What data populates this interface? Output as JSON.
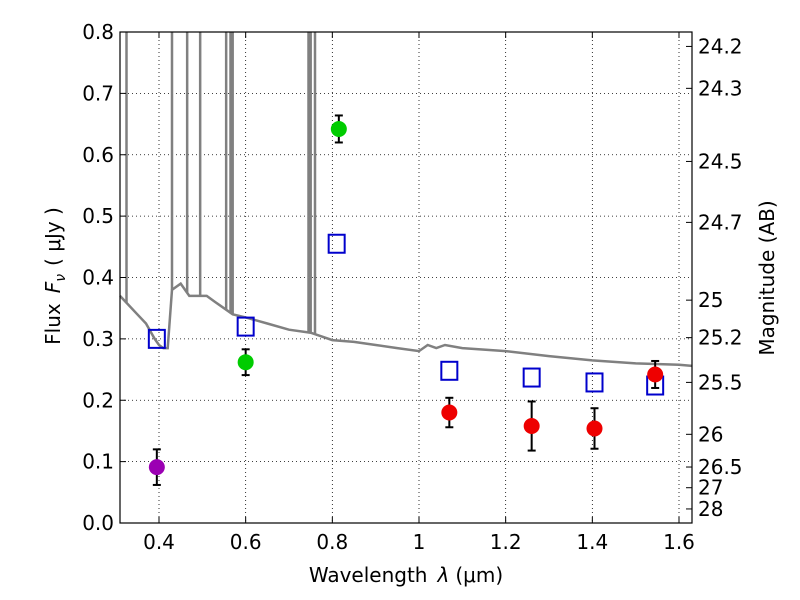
{
  "chart_data": {
    "type": "scatter",
    "title": "",
    "xlabel_text": "Wavelength",
    "xlabel_symbol": "λ",
    "xlabel_unit": "(μm)",
    "ylabel_text": "Flux",
    "ylabel_symbol": "F",
    "ylabel_subscript": "ν",
    "ylabel_unit": "( μJy )",
    "y2label": "Magnitude (AB)",
    "xlim": [
      0.31,
      1.63
    ],
    "ylim": [
      0.0,
      0.8
    ],
    "grid": "dotted",
    "xticks": [
      0.4,
      0.6,
      0.8,
      1.0,
      1.2,
      1.4,
      1.6
    ],
    "xtick_labels": [
      "0.4",
      "0.6",
      "0.8",
      "1",
      "1.2",
      "1.4",
      "1.6"
    ],
    "yticks": [
      0.0,
      0.1,
      0.2,
      0.3,
      0.4,
      0.5,
      0.6,
      0.7,
      0.8
    ],
    "ytick_labels": [
      "0.0",
      "0.1",
      "0.2",
      "0.3",
      "0.4",
      "0.5",
      "0.6",
      "0.7",
      "0.8"
    ],
    "mag_ticks": [
      {
        "label": "24.2",
        "flux": 0.7765
      },
      {
        "label": "24.3",
        "flux": 0.7082
      },
      {
        "label": "24.5",
        "flux": 0.5891
      },
      {
        "label": "24.7",
        "flux": 0.4898
      },
      {
        "label": "25",
        "flux": 0.3631
      },
      {
        "label": "25.2",
        "flux": 0.302
      },
      {
        "label": "25.5",
        "flux": 0.2291
      },
      {
        "label": "26",
        "flux": 0.1445
      },
      {
        "label": "26.5",
        "flux": 0.0912
      },
      {
        "label": "27",
        "flux": 0.0575
      },
      {
        "label": "28",
        "flux": 0.0229
      }
    ],
    "series": [
      {
        "name": "model SED",
        "type": "line",
        "color": "#808080",
        "x": [
          0.31,
          0.33,
          0.35,
          0.37,
          0.39,
          0.4,
          0.41,
          0.42,
          0.43,
          0.45,
          0.47,
          0.49,
          0.51,
          0.53,
          0.55,
          0.57,
          0.6,
          0.65,
          0.7,
          0.75,
          0.8,
          0.85,
          0.9,
          0.95,
          1.0,
          1.02,
          1.04,
          1.06,
          1.1,
          1.2,
          1.3,
          1.4,
          1.5,
          1.6,
          1.63
        ],
        "y": [
          0.37,
          0.355,
          0.34,
          0.325,
          0.3,
          0.29,
          0.285,
          0.285,
          0.38,
          0.39,
          0.37,
          0.37,
          0.37,
          0.36,
          0.35,
          0.34,
          0.335,
          0.325,
          0.315,
          0.31,
          0.298,
          0.295,
          0.29,
          0.285,
          0.28,
          0.29,
          0.285,
          0.29,
          0.285,
          0.28,
          0.272,
          0.265,
          0.26,
          0.258,
          0.256
        ]
      },
      {
        "name": "model line spikes",
        "type": "spikes",
        "color": "#808080",
        "x": [
          0.325,
          0.43,
          0.465,
          0.495,
          0.555,
          0.565,
          0.57,
          0.745,
          0.75,
          0.76
        ]
      },
      {
        "name": "model band fluxes",
        "type": "open-square",
        "color": "#0000cc",
        "x": [
          0.395,
          0.6,
          0.81,
          1.07,
          1.26,
          1.405,
          1.545
        ],
        "y": [
          0.3,
          0.32,
          0.455,
          0.248,
          0.237,
          0.229,
          0.224
        ]
      },
      {
        "name": "observed violet",
        "type": "point",
        "color": "#9b00b3",
        "x": [
          0.395
        ],
        "y": [
          0.091
        ],
        "yerr": [
          0.029
        ]
      },
      {
        "name": "observed green",
        "type": "point",
        "color": "#00cc00",
        "x": [
          0.6,
          0.815
        ],
        "y": [
          0.262,
          0.642
        ],
        "yerr": [
          0.021,
          0.022
        ]
      },
      {
        "name": "observed red",
        "type": "point",
        "color": "#ee0000",
        "x": [
          1.07,
          1.26,
          1.405,
          1.545
        ],
        "y": [
          0.18,
          0.158,
          0.154,
          0.242
        ],
        "yerr": [
          0.024,
          0.04,
          0.033,
          0.022
        ]
      }
    ]
  }
}
